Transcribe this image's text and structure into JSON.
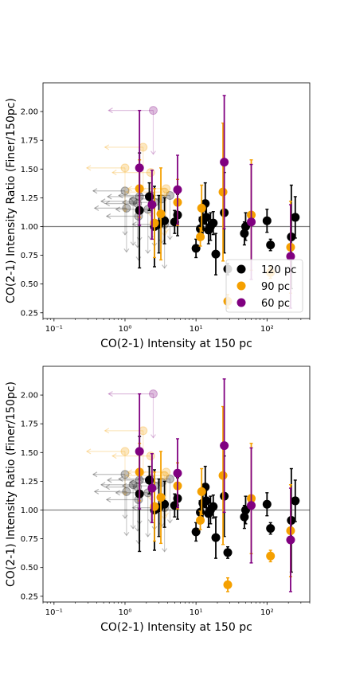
{
  "chart_data": [
    {
      "type": "scatter",
      "xlabel": "CO(2-1) Intensity at 150 pc",
      "ylabel": "CO(2-1) Intensity Ratio (Finer/150pc)",
      "xscale": "log",
      "xlim": [
        0.07,
        400
      ],
      "ylim": [
        0.2,
        2.25
      ],
      "x_ticks": [
        0.1,
        1,
        10,
        100
      ],
      "x_tick_labels": [
        "10⁻¹",
        "10⁰",
        "10¹",
        "10²"
      ],
      "y_ticks": [
        0.25,
        0.5,
        0.75,
        1.0,
        1.25,
        1.5,
        1.75,
        2.0
      ],
      "y_tick_labels": [
        "0.25",
        "0.50",
        "0.75",
        "1.00",
        "1.25",
        "1.50",
        "1.75",
        "2.00"
      ],
      "reference_line": 1.0,
      "legend_position": "lower-right",
      "series": [
        {
          "name": "120 pc",
          "color": "#000000",
          "points": [
            [
              1.6,
              1.14,
              0.5
            ],
            [
              2.6,
              1.0,
              0.35
            ],
            [
              2.2,
              1.26,
              0.12
            ],
            [
              3.0,
              1.02,
              0.25
            ],
            [
              3.6,
              1.05,
              0.2
            ],
            [
              5.0,
              1.04,
              0.1
            ],
            [
              5.5,
              1.1,
              0.18
            ],
            [
              10.0,
              0.81,
              0.08
            ],
            [
              11.5,
              0.98,
              0.1
            ],
            [
              12.5,
              1.06,
              0.15
            ],
            [
              13.5,
              1.2,
              0.18
            ],
            [
              14.0,
              1.08,
              0.1
            ],
            [
              15.0,
              0.97,
              0.12
            ],
            [
              16.0,
              1.0,
              0.12
            ],
            [
              17.5,
              1.03,
              0.1
            ],
            [
              19.0,
              0.76,
              0.18
            ],
            [
              25.0,
              1.12,
              0.35
            ],
            [
              28.0,
              0.63,
              0.05
            ],
            [
              48.0,
              0.94,
              0.1
            ],
            [
              50.0,
              1.0,
              0.12
            ],
            [
              100.0,
              1.05,
              0.1
            ],
            [
              112.0,
              0.84,
              0.05
            ],
            [
              220.0,
              0.91,
              0.45
            ],
            [
              250.0,
              1.08,
              0.18
            ]
          ],
          "upper_limits": [
            [
              1.0,
              1.31
            ],
            [
              1.05,
              1.16
            ],
            [
              1.3,
              1.22
            ],
            [
              1.5,
              1.2
            ],
            [
              1.55,
              1.09
            ],
            [
              1.6,
              1.26
            ],
            [
              2.1,
              1.15
            ],
            [
              2.3,
              1.27
            ],
            [
              2.6,
              1.21
            ],
            [
              3.3,
              1.24
            ],
            [
              3.6,
              1.02
            ],
            [
              4.3,
              1.27
            ]
          ]
        },
        {
          "name": "90 pc",
          "color": "#f5a000",
          "points": [
            [
              1.6,
              1.33,
              0.25
            ],
            [
              2.6,
              1.03,
              0.3
            ],
            [
              3.2,
              1.11,
              0.4
            ],
            [
              5.5,
              1.21,
              0.2
            ],
            [
              11.5,
              0.91,
              0.08
            ],
            [
              12.0,
              1.16,
              0.2
            ],
            [
              24.0,
              1.3,
              0.6
            ],
            [
              28.0,
              0.35,
              0.06
            ],
            [
              60.0,
              1.1,
              0.48
            ],
            [
              112.0,
              0.6,
              0.05
            ],
            [
              215.0,
              0.82,
              0.4
            ]
          ],
          "upper_limits": [
            [
              1.0,
              1.51
            ],
            [
              1.8,
              1.69
            ],
            [
              2.3,
              1.47
            ],
            [
              3.8,
              1.33
            ],
            [
              3.6,
              1.3
            ]
          ]
        },
        {
          "name": "60 pc",
          "color": "#800080",
          "points": [
            [
              1.6,
              1.51,
              0.5
            ],
            [
              2.4,
              1.19,
              0.3
            ],
            [
              5.5,
              1.32,
              0.3
            ],
            [
              25.0,
              1.56,
              0.58
            ],
            [
              60.0,
              1.04,
              0.5
            ],
            [
              215.0,
              0.74,
              0.45
            ]
          ],
          "upper_limits": [
            [
              2.5,
              2.01
            ]
          ]
        }
      ]
    },
    {
      "type": "scatter",
      "xlabel": "CO(2-1) Intensity at 150 pc",
      "ylabel": "CO(2-1) Intensity Ratio (Finer/150pc)",
      "xscale": "log",
      "xlim": [
        0.07,
        400
      ],
      "ylim": [
        0.2,
        2.25
      ],
      "x_ticks": [
        0.1,
        1,
        10,
        100
      ],
      "x_tick_labels": [
        "10⁻¹",
        "10⁰",
        "10¹",
        "10²"
      ],
      "y_ticks": [
        0.25,
        0.5,
        0.75,
        1.0,
        1.25,
        1.5,
        1.75,
        2.0
      ],
      "y_tick_labels": [
        "0.25",
        "0.50",
        "0.75",
        "1.00",
        "1.25",
        "1.50",
        "1.75",
        "2.00"
      ],
      "reference_line": 1.0,
      "series": [
        {
          "name": "120 pc",
          "color": "#000000",
          "points": [
            [
              1.6,
              1.14,
              0.5
            ],
            [
              2.6,
              1.0,
              0.35
            ],
            [
              2.2,
              1.26,
              0.12
            ],
            [
              3.0,
              1.02,
              0.25
            ],
            [
              3.6,
              1.05,
              0.2
            ],
            [
              5.0,
              1.04,
              0.1
            ],
            [
              5.5,
              1.1,
              0.18
            ],
            [
              10.0,
              0.81,
              0.08
            ],
            [
              11.5,
              0.98,
              0.1
            ],
            [
              12.5,
              1.06,
              0.15
            ],
            [
              13.5,
              1.2,
              0.18
            ],
            [
              14.0,
              1.08,
              0.1
            ],
            [
              15.0,
              0.97,
              0.12
            ],
            [
              16.0,
              1.0,
              0.12
            ],
            [
              17.5,
              1.03,
              0.1
            ],
            [
              19.0,
              0.76,
              0.18
            ],
            [
              25.0,
              1.12,
              0.35
            ],
            [
              28.0,
              0.63,
              0.05
            ],
            [
              48.0,
              0.94,
              0.1
            ],
            [
              50.0,
              1.0,
              0.12
            ],
            [
              100.0,
              1.05,
              0.1
            ],
            [
              112.0,
              0.84,
              0.05
            ],
            [
              220.0,
              0.91,
              0.45
            ],
            [
              250.0,
              1.08,
              0.18
            ]
          ],
          "upper_limits": [
            [
              1.0,
              1.31
            ],
            [
              1.05,
              1.16
            ],
            [
              1.3,
              1.22
            ],
            [
              1.5,
              1.2
            ],
            [
              1.55,
              1.09
            ],
            [
              1.6,
              1.26
            ],
            [
              2.1,
              1.15
            ],
            [
              2.3,
              1.27
            ],
            [
              2.6,
              1.21
            ],
            [
              3.3,
              1.24
            ],
            [
              3.6,
              1.02
            ],
            [
              4.3,
              1.27
            ]
          ]
        },
        {
          "name": "90 pc",
          "color": "#f5a000",
          "points": [
            [
              1.6,
              1.33,
              0.25
            ],
            [
              2.6,
              1.03,
              0.3
            ],
            [
              3.2,
              1.11,
              0.4
            ],
            [
              5.5,
              1.21,
              0.2
            ],
            [
              11.5,
              0.91,
              0.08
            ],
            [
              12.0,
              1.16,
              0.2
            ],
            [
              24.0,
              1.3,
              0.6
            ],
            [
              28.0,
              0.35,
              0.06
            ],
            [
              60.0,
              1.1,
              0.48
            ],
            [
              112.0,
              0.6,
              0.05
            ],
            [
              215.0,
              0.82,
              0.4
            ]
          ],
          "upper_limits": [
            [
              1.0,
              1.51
            ],
            [
              1.8,
              1.69
            ],
            [
              2.3,
              1.47
            ],
            [
              3.8,
              1.33
            ],
            [
              3.6,
              1.3
            ]
          ]
        },
        {
          "name": "60 pc",
          "color": "#800080",
          "points": [
            [
              1.6,
              1.51,
              0.5
            ],
            [
              2.4,
              1.19,
              0.3
            ],
            [
              5.5,
              1.32,
              0.3
            ],
            [
              25.0,
              1.56,
              0.58
            ],
            [
              60.0,
              1.04,
              0.5
            ],
            [
              215.0,
              0.74,
              0.45
            ]
          ],
          "upper_limits": [
            [
              2.5,
              2.01
            ]
          ]
        }
      ]
    }
  ]
}
